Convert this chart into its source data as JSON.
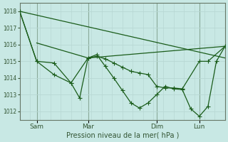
{
  "xlabel": "Pression niveau de la mer( hPa )",
  "bg_color": "#c8e8e4",
  "grid_color_major": "#b8d8d4",
  "grid_color_minor": "#c0dcd8",
  "line_color": "#1a5c1a",
  "ylim": [
    1011.5,
    1018.5
  ],
  "yticks": [
    1012,
    1013,
    1014,
    1015,
    1016,
    1017,
    1018
  ],
  "xtick_labels": [
    "Sam",
    "Mar",
    "Dim",
    "Lun"
  ],
  "xtick_positions": [
    0.083,
    0.333,
    0.667,
    0.875
  ],
  "day_lines": [
    0.083,
    0.333,
    0.667,
    0.875
  ],
  "xlim": [
    0.0,
    1.0
  ],
  "line1_x": [
    0.0,
    0.083,
    0.167,
    0.25,
    0.333,
    0.375,
    0.417,
    0.458,
    0.5,
    0.542,
    0.583,
    0.625,
    0.667,
    0.708,
    0.75,
    0.792,
    0.875,
    0.917,
    1.0
  ],
  "line1_y": [
    1018.0,
    1015.0,
    1014.9,
    1013.7,
    1015.2,
    1015.3,
    1015.15,
    1014.9,
    1014.65,
    1014.4,
    1014.3,
    1014.2,
    1013.5,
    1013.4,
    1013.4,
    1013.35,
    1015.0,
    1015.0,
    1015.9
  ],
  "line2_x": [
    0.0,
    0.083,
    0.167,
    0.25,
    0.292,
    0.333,
    0.375,
    0.417,
    0.458,
    0.5,
    0.542,
    0.583,
    0.625,
    0.667,
    0.708,
    0.75,
    0.792,
    0.833,
    0.875,
    0.917,
    0.958,
    1.0
  ],
  "line2_y": [
    1018.0,
    1015.0,
    1014.2,
    1013.7,
    1012.8,
    1015.2,
    1015.4,
    1014.7,
    1014.0,
    1013.25,
    1012.5,
    1012.2,
    1012.5,
    1013.0,
    1013.5,
    1013.35,
    1013.3,
    1012.15,
    1011.7,
    1012.3,
    1015.0,
    1015.9
  ],
  "line3_x": [
    0.083,
    0.333,
    1.0
  ],
  "line3_y": [
    1016.1,
    1015.2,
    1015.9
  ],
  "line4_x": [
    0.0,
    1.0
  ],
  "line4_y": [
    1018.0,
    1015.2
  ]
}
